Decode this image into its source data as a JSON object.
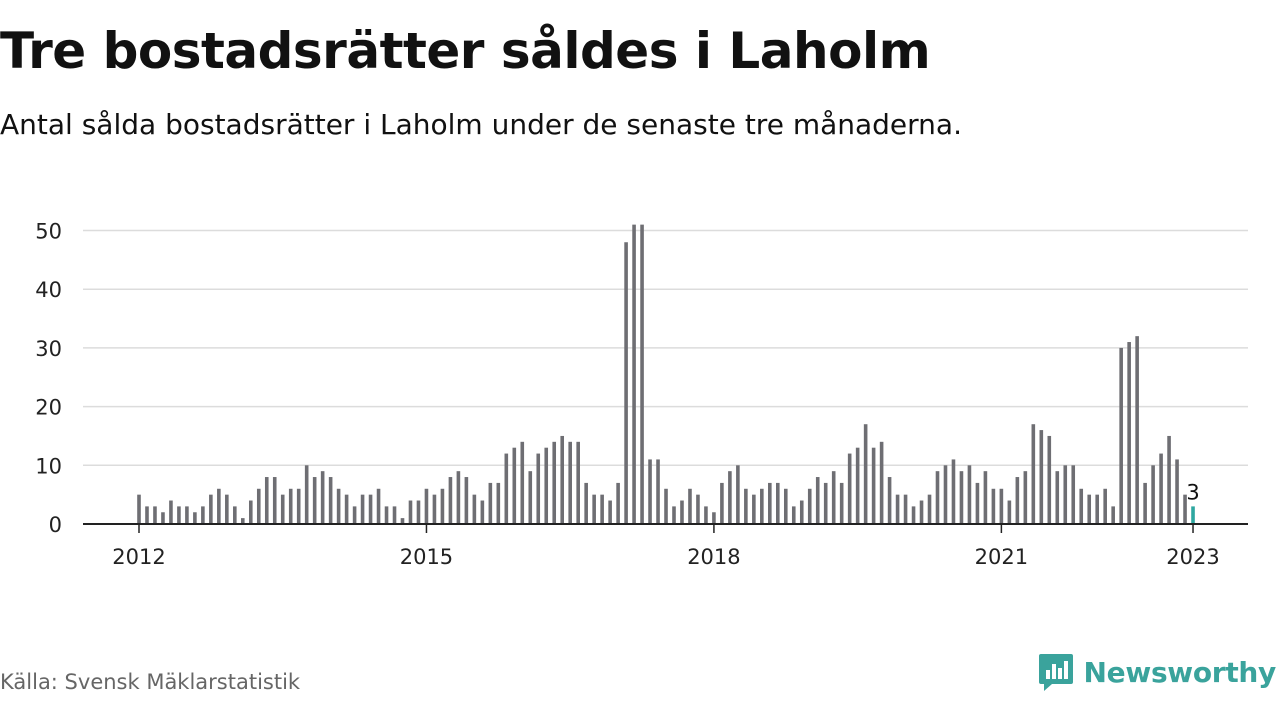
{
  "title": "Tre bostadsrätter såldes i Laholm",
  "subtitle": "Antal sålda bostadsrätter i Laholm under de senaste tre månaderna.",
  "source": "Källa: Svensk Mäklarstatistik",
  "brand": {
    "name": "Newsworthy",
    "icon": "newsworthy-logo-icon",
    "color": "#3aa39c"
  },
  "chart_data": {
    "type": "bar",
    "title": "Tre bostadsrätter såldes i Laholm",
    "subtitle": "Antal sålda bostadsrätter i Laholm under de senaste tre månaderna.",
    "xlabel": "",
    "ylabel": "",
    "ylim": [
      0,
      52
    ],
    "yticks": [
      0,
      10,
      20,
      30,
      40,
      50
    ],
    "xticks": [
      {
        "label": "2012",
        "index": 0
      },
      {
        "label": "2015",
        "index": 36
      },
      {
        "label": "2018",
        "index": 72
      },
      {
        "label": "2021",
        "index": 108
      },
      {
        "label": "2023",
        "index": 132
      }
    ],
    "grid": true,
    "bar_color": "#6e6e73",
    "highlight_color": "#2ea7a0",
    "highlight_index": 132,
    "value_label": "3",
    "start": "2012-01",
    "end": "2023-01",
    "frequency": "monthly",
    "values": [
      5,
      3,
      3,
      2,
      4,
      3,
      3,
      2,
      3,
      5,
      6,
      5,
      3,
      1,
      4,
      6,
      8,
      8,
      5,
      6,
      6,
      10,
      8,
      9,
      8,
      6,
      5,
      3,
      5,
      5,
      6,
      3,
      3,
      1,
      4,
      4,
      6,
      5,
      6,
      8,
      9,
      8,
      5,
      4,
      7,
      7,
      12,
      13,
      14,
      9,
      12,
      13,
      14,
      15,
      14,
      14,
      7,
      5,
      5,
      4,
      7,
      48,
      51,
      51,
      11,
      11,
      6,
      3,
      4,
      6,
      5,
      3,
      2,
      7,
      9,
      10,
      6,
      5,
      6,
      7,
      7,
      6,
      3,
      4,
      6,
      8,
      7,
      9,
      7,
      12,
      13,
      17,
      13,
      14,
      8,
      5,
      5,
      3,
      4,
      5,
      9,
      10,
      11,
      9,
      10,
      7,
      9,
      6,
      6,
      4,
      8,
      9,
      17,
      16,
      15,
      9,
      10,
      10,
      6,
      5,
      5,
      6,
      3,
      30,
      31,
      32,
      7,
      10,
      12,
      15,
      11,
      5,
      3
    ]
  }
}
